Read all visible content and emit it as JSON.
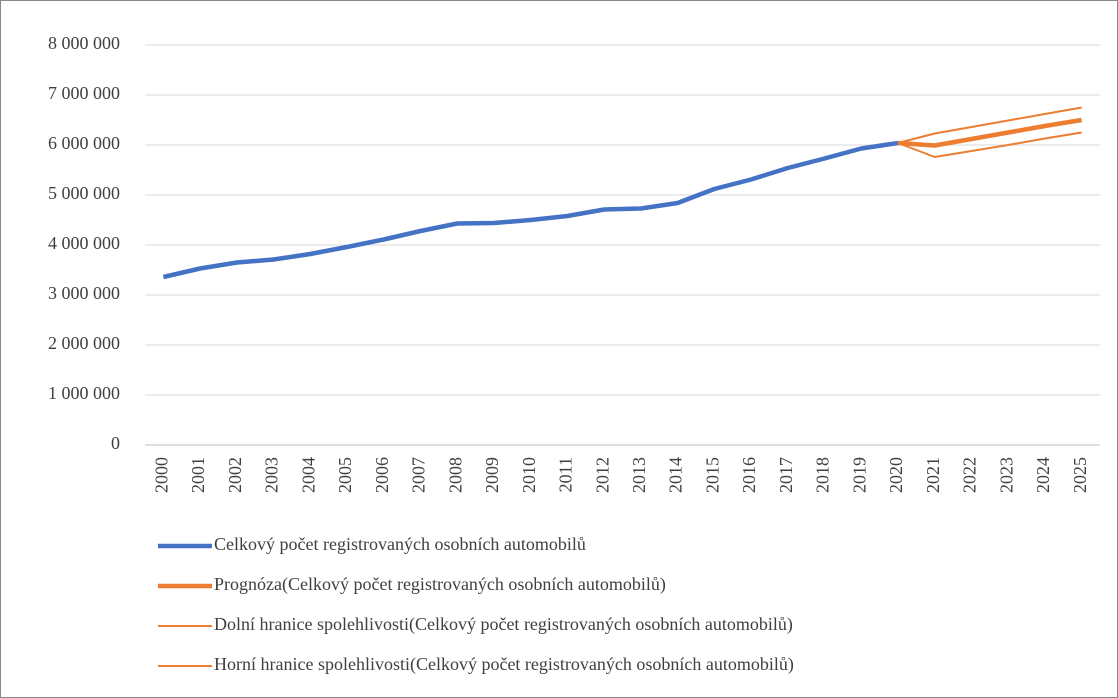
{
  "chart_data": {
    "type": "line",
    "categories": [
      "2000",
      "2001",
      "2002",
      "2003",
      "2004",
      "2005",
      "2006",
      "2007",
      "2008",
      "2009",
      "2010",
      "2011",
      "2012",
      "2013",
      "2014",
      "2015",
      "2016",
      "2017",
      "2018",
      "2019",
      "2020",
      "2021",
      "2022",
      "2023",
      "2024",
      "2025"
    ],
    "series": [
      {
        "name": "Celkový počet registrovaných osobních automobilů",
        "color": "#4472c4",
        "width": 4.5,
        "values": [
          3360000,
          3530000,
          3650000,
          3710000,
          3820000,
          3960000,
          4110000,
          4280000,
          4430000,
          4440000,
          4500000,
          4580000,
          4710000,
          4730000,
          4840000,
          5120000,
          5310000,
          5540000,
          5730000,
          5930000,
          6040000,
          null,
          null,
          null,
          null,
          null
        ]
      },
      {
        "name": "Prognóza(Celkový počet registrovaných osobních automobilů)",
        "color": "#ed7d31",
        "width": 4.5,
        "values": [
          null,
          null,
          null,
          null,
          null,
          null,
          null,
          null,
          null,
          null,
          null,
          null,
          null,
          null,
          null,
          null,
          null,
          null,
          null,
          null,
          6040000,
          5990000,
          6120000,
          6250000,
          6380000,
          6500000
        ]
      },
      {
        "name": "Dolní hranice spolehlivosti(Celkový počet registrovaných osobních automobilů)",
        "color": "#ed7d31",
        "width": 2,
        "values": [
          null,
          null,
          null,
          null,
          null,
          null,
          null,
          null,
          null,
          null,
          null,
          null,
          null,
          null,
          null,
          null,
          null,
          null,
          null,
          null,
          6040000,
          5760000,
          5880000,
          6000000,
          6130000,
          6250000
        ]
      },
      {
        "name": "Horní hranice spolehlivosti(Celkový počet registrovaných osobních automobilů)",
        "color": "#ed7d31",
        "width": 2,
        "values": [
          null,
          null,
          null,
          null,
          null,
          null,
          null,
          null,
          null,
          null,
          null,
          null,
          null,
          null,
          null,
          null,
          null,
          null,
          null,
          null,
          6040000,
          6230000,
          6360000,
          6490000,
          6620000,
          6750000
        ]
      }
    ],
    "ylim": [
      0,
      8000000
    ],
    "yticks": [
      0,
      {
        "value": 1000000,
        "label": "1 000 000"
      },
      {
        "value": 2000000,
        "label": "2 000 000"
      },
      {
        "value": 3000000,
        "label": "3 000 000"
      },
      {
        "value": 4000000,
        "label": "4 000 000"
      },
      {
        "value": 5000000,
        "label": "5 000 000"
      },
      {
        "value": 6000000,
        "label": "6 000 000"
      },
      {
        "value": 7000000,
        "label": "7 000 000"
      },
      {
        "value": 8000000,
        "label": "8 000 000"
      }
    ],
    "grid": true,
    "legend": "bottom"
  }
}
